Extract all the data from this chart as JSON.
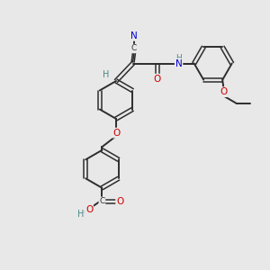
{
  "bg_color": "#e8e8e8",
  "bond_color": "#2d2d2d",
  "atom_colors": {
    "N": "#0000cd",
    "O": "#cc0000",
    "H": "#4a8a8a",
    "C": "#2d2d2d"
  }
}
